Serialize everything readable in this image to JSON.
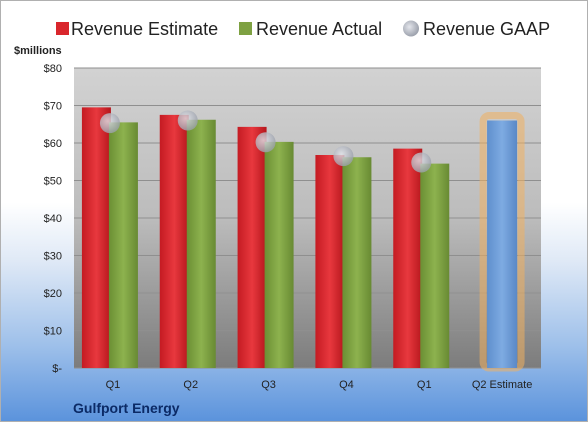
{
  "chart_data": {
    "type": "bar",
    "unit_label": "$millions",
    "company": "Gulfport Energy",
    "categories": [
      "Q1",
      "Q2",
      "Q3",
      "Q4",
      "Q1",
      "Q2 Estimate"
    ],
    "y_ticks": [
      "$-",
      "$10",
      "$20",
      "$30",
      "$40",
      "$50",
      "$60",
      "$70",
      "$80"
    ],
    "ylim": [
      0,
      80
    ],
    "grid": true,
    "legend_position": "top",
    "series": [
      {
        "name": "Revenue Estimate",
        "color": "#d9262c",
        "marker": "bar",
        "values": [
          69.5,
          67.5,
          64.3,
          56.8,
          58.5,
          null
        ]
      },
      {
        "name": "Revenue Actual",
        "color": "#7ea142",
        "marker": "bar",
        "values": [
          65.5,
          66.2,
          60.3,
          56.2,
          54.5,
          null
        ]
      },
      {
        "name": "Revenue GAAP",
        "color": "#c3c6cf",
        "marker": "dot",
        "values": [
          65.3,
          66.0,
          60.2,
          56.5,
          54.8,
          null
        ]
      }
    ],
    "estimate": {
      "category_index": 5,
      "value": 66.0,
      "color": "#6f9fd8",
      "glow": "#f0b060"
    }
  }
}
